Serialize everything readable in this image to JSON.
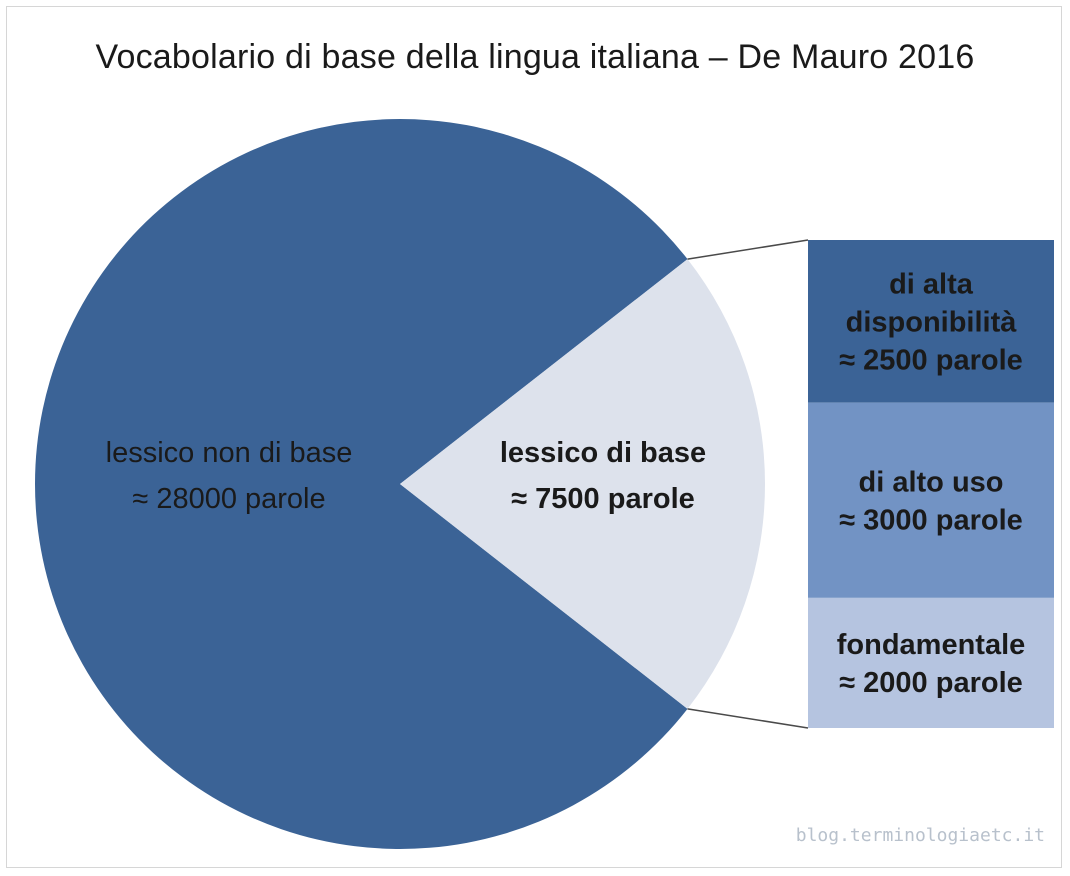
{
  "chart_data": {
    "type": "pie",
    "title": "Vocabolario di base della lingua italiana – De Mauro 2016",
    "slices": [
      {
        "label_line1": "lessico non di base",
        "label_line2": "≈ 28000 parole",
        "value": 28000,
        "color": "#3b6396"
      },
      {
        "label_line1": "lessico di base",
        "label_line2": "≈ 7500 parole",
        "value": 7500,
        "color": "#dde2ec"
      }
    ],
    "breakdown": {
      "of": "lessico di base",
      "segments": [
        {
          "lines": [
            "di alta",
            "disponibilità",
            "≈ 2500 parole"
          ],
          "value": 2500,
          "color": "#3b6396"
        },
        {
          "lines": [
            "di alto uso",
            "≈ 3000 parole"
          ],
          "value": 3000,
          "color": "#7293c4"
        },
        {
          "lines": [
            "fondamentale",
            "≈ 2000 parole"
          ],
          "value": 2000,
          "color": "#b5c4e0"
        }
      ]
    },
    "source": "blog.terminologiaetc.it"
  },
  "colors": {
    "connector": "#4a4a4a",
    "text": "#1a1a1a",
    "watermark": "#b8c1cc"
  }
}
